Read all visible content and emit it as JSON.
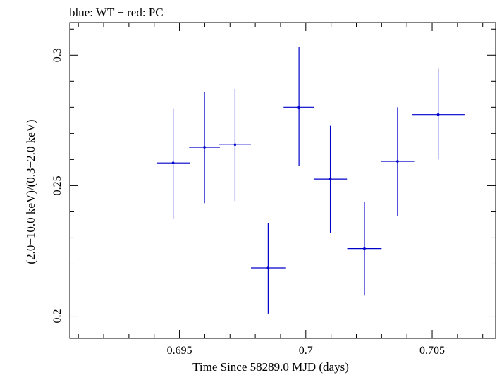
{
  "chart_data": {
    "type": "scatter",
    "title": "blue: WT − red: PC",
    "xlabel": "Time Since 58289.0 MJD (days)",
    "ylabel": "(2.0−10.0 keV)/(0.3−2.0 keV)",
    "xlim": [
      0.69066,
      0.70751
    ],
    "ylim": [
      0.1915,
      0.3125
    ],
    "x_ticks": [
      0.695,
      0.7,
      0.705
    ],
    "x_tick_labels": [
      "0.695",
      "0.7",
      "0.705"
    ],
    "y_ticks": [
      0.2,
      0.25,
      0.3
    ],
    "y_tick_labels": [
      "0.2",
      "0.25",
      "0.3"
    ],
    "grid": false,
    "series": [
      {
        "color": "#0000cc",
        "points": [
          {
            "x": 0.69475,
            "y": 0.2587,
            "x_err": 0.00066,
            "y_err_low": 0.0214,
            "y_err_high": 0.0209
          },
          {
            "x": 0.69599,
            "y": 0.2647,
            "x_err": 0.00061,
            "y_err_low": 0.0214,
            "y_err_high": 0.0212
          },
          {
            "x": 0.6972,
            "y": 0.2657,
            "x_err": 0.00063,
            "y_err_low": 0.0216,
            "y_err_high": 0.0214
          },
          {
            "x": 0.69851,
            "y": 0.2185,
            "x_err": 0.00068,
            "y_err_low": 0.0175,
            "y_err_high": 0.0173
          },
          {
            "x": 0.69973,
            "y": 0.28,
            "x_err": 0.00061,
            "y_err_low": 0.0225,
            "y_err_high": 0.0232
          },
          {
            "x": 0.70097,
            "y": 0.2525,
            "x_err": 0.00066,
            "y_err_low": 0.0207,
            "y_err_high": 0.0204
          },
          {
            "x": 0.70232,
            "y": 0.2259,
            "x_err": 0.00068,
            "y_err_low": 0.018,
            "y_err_high": 0.018
          },
          {
            "x": 0.70363,
            "y": 0.2593,
            "x_err": 0.00066,
            "y_err_low": 0.0209,
            "y_err_high": 0.0207
          },
          {
            "x": 0.70524,
            "y": 0.2772,
            "x_err": 0.00104,
            "y_err_low": 0.0172,
            "y_err_high": 0.0176
          }
        ]
      }
    ]
  }
}
